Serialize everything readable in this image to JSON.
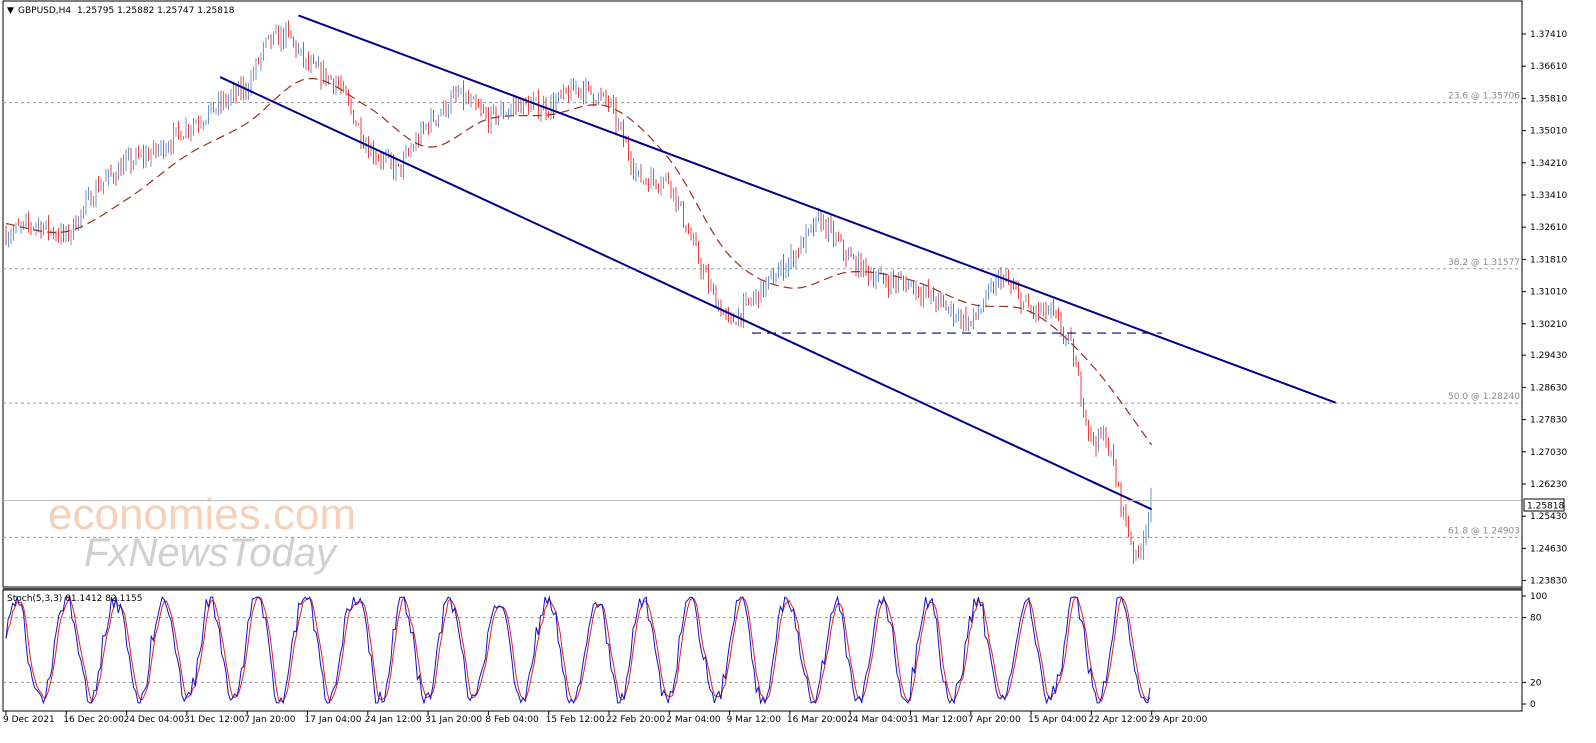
{
  "header": {
    "symbol": "GBPUSD,H4",
    "ohlc": "1.25795 1.25882 1.25747 1.25818"
  },
  "watermark": {
    "line1": "economies.com",
    "line2": "FxNewsToday"
  },
  "price_axis": {
    "ticks": [
      "1.37410",
      "1.36610",
      "1.35810",
      "1.35010",
      "1.34210",
      "1.33410",
      "1.32610",
      "1.31810",
      "1.31010",
      "1.30210",
      "1.29430",
      "1.28630",
      "1.27830",
      "1.27030",
      "1.26230",
      "1.25430",
      "1.24630",
      "1.23830"
    ],
    "current_price": "1.25818"
  },
  "time_axis": {
    "ticks": [
      "9 Dec 2021",
      "16 Dec 20:00",
      "24 Dec 04:00",
      "31 Dec 12:00",
      "7 Jan 20:00",
      "17 Jan 04:00",
      "24 Jan 12:00",
      "31 Jan 20:00",
      "8 Feb 04:00",
      "15 Feb 12:00",
      "22 Feb 20:00",
      "2 Mar 04:00",
      "9 Mar 12:00",
      "16 Mar 20:00",
      "24 Mar 04:00",
      "31 Mar 12:00",
      "7 Apr 20:00",
      "15 Apr 04:00",
      "22 Apr 12:00",
      "29 Apr 20:00"
    ]
  },
  "fib_levels": [
    {
      "label": "23.6 @ 1.35706",
      "price": 1.35706
    },
    {
      "label": "38.2 @ 1.31577",
      "price": 1.31577
    },
    {
      "label": "50.0 @ 1.28240",
      "price": 1.2824
    },
    {
      "label": "61.8 @ 1.24903",
      "price": 1.24903
    }
  ],
  "stoch_panel": {
    "label": "Stoch(5,3,3) 81.1412 82.1155",
    "ticks": [
      "100",
      "80",
      "20",
      "0"
    ]
  },
  "colors": {
    "bull": "#6f94c8",
    "bear": "#e8403c",
    "ma": "#9b2d20",
    "channel": "#00008c",
    "stoch_main": "#1010c8",
    "stoch_signal": "#e02020"
  },
  "chart_data": {
    "type": "candlestick",
    "title": "GBPUSD,H4",
    "ylim": [
      1.2355,
      1.3795
    ],
    "stoch_ylim": [
      0,
      100
    ],
    "close_path": [
      [
        "9 Dec 2021",
        1.3245
      ],
      [
        "13 Dec",
        1.327
      ],
      [
        "16 Dec 20:00",
        1.3235
      ],
      [
        "20 Dec",
        1.336
      ],
      [
        "24 Dec 04:00",
        1.342
      ],
      [
        "28 Dec",
        1.345
      ],
      [
        "31 Dec 12:00",
        1.351
      ],
      [
        "4 Jan",
        1.356
      ],
      [
        "7 Jan 20:00",
        1.361
      ],
      [
        "10 Jan",
        1.372
      ],
      [
        "13 Jan",
        1.374
      ],
      [
        "17 Jan 04:00",
        1.366
      ],
      [
        "20 Jan",
        1.362
      ],
      [
        "24 Jan 12:00",
        1.346
      ],
      [
        "27 Jan",
        1.34
      ],
      [
        "31 Jan 20:00",
        1.352
      ],
      [
        "3 Feb",
        1.359
      ],
      [
        "8 Feb 04:00",
        1.353
      ],
      [
        "11 Feb",
        1.3565
      ],
      [
        "15 Feb 12:00",
        1.356
      ],
      [
        "18 Feb",
        1.361
      ],
      [
        "22 Feb 20:00",
        1.357
      ],
      [
        "24 Feb",
        1.338
      ],
      [
        "2 Mar 04:00",
        1.338
      ],
      [
        "4 Mar",
        1.324
      ],
      [
        "7 Mar",
        1.311
      ],
      [
        "9 Mar 12:00",
        1.302
      ],
      [
        "11 Mar",
        1.31
      ],
      [
        "16 Mar 20:00",
        1.318
      ],
      [
        "18 Mar",
        1.328
      ],
      [
        "24 Mar 04:00",
        1.318
      ],
      [
        "28 Mar",
        1.313
      ],
      [
        "31 Mar 12:00",
        1.312
      ],
      [
        "5 Apr",
        1.307
      ],
      [
        "7 Apr 20:00",
        1.302
      ],
      [
        "11 Apr",
        1.314
      ],
      [
        "15 Apr 04:00",
        1.305
      ],
      [
        "19 Apr",
        1.305
      ],
      [
        "21 Apr",
        1.296
      ],
      [
        "22 Apr 12:00",
        1.273
      ],
      [
        "25 Apr",
        1.274
      ],
      [
        "26 Apr",
        1.257
      ],
      [
        "28 Apr",
        1.243
      ],
      [
        "29 Apr 20:00",
        1.2582
      ]
    ],
    "moving_average_path": [
      [
        "9 Dec 2021",
        1.327
      ],
      [
        "16 Dec 20:00",
        1.325
      ],
      [
        "24 Dec 04:00",
        1.333
      ],
      [
        "31 Dec 12:00",
        1.344
      ],
      [
        "7 Jan 20:00",
        1.352
      ],
      [
        "17 Jan 04:00",
        1.363
      ],
      [
        "24 Jan 12:00",
        1.356
      ],
      [
        "31 Jan 20:00",
        1.346
      ],
      [
        "8 Feb 04:00",
        1.353
      ],
      [
        "15 Feb 12:00",
        1.354
      ],
      [
        "22 Feb 20:00",
        1.356
      ],
      [
        "2 Mar 04:00",
        1.343
      ],
      [
        "9 Mar 12:00",
        1.319
      ],
      [
        "16 Mar 20:00",
        1.311
      ],
      [
        "24 Mar 04:00",
        1.315
      ],
      [
        "31 Mar 12:00",
        1.313
      ],
      [
        "7 Apr 20:00",
        1.307
      ],
      [
        "15 Apr 04:00",
        1.305
      ],
      [
        "22 Apr 12:00",
        1.292
      ],
      [
        "29 Apr 20:00",
        1.272
      ]
    ],
    "channel_upper": [
      [
        "15 Jan",
        1.3787
      ],
      [
        "6 May",
        1.2825
      ]
    ],
    "channel_lower": [
      [
        "4 Jan",
        1.3634
      ],
      [
        "29 Apr 20:00",
        1.256
      ]
    ],
    "support_level": 1.2998
  }
}
